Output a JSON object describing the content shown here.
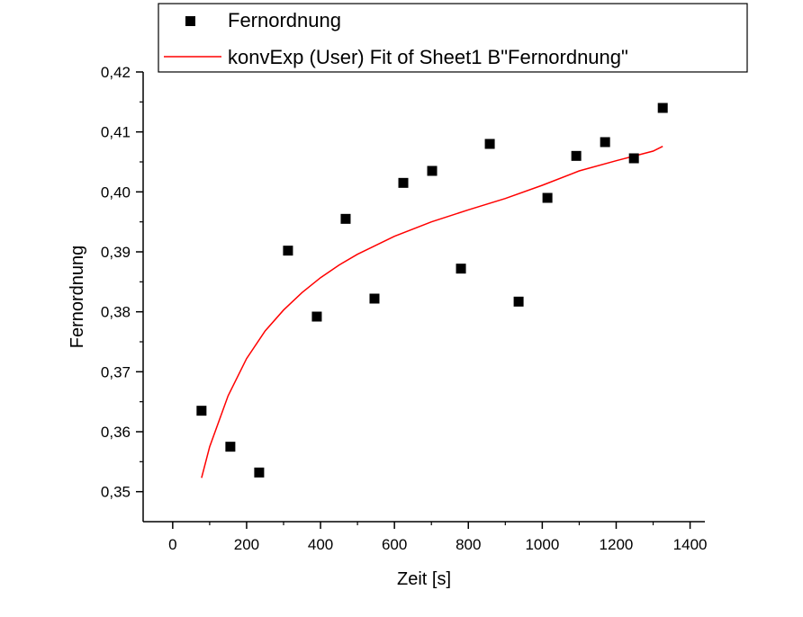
{
  "chart_data": {
    "type": "scatter",
    "xlabel": "Zeit [s]",
    "ylabel": "Fernordnung",
    "xlim": [
      -80,
      1440
    ],
    "ylim": [
      0.345,
      0.42
    ],
    "x_ticks": [
      0,
      200,
      400,
      600,
      800,
      1000,
      1200,
      1400
    ],
    "x_tick_labels": [
      "0",
      "200",
      "400",
      "600",
      "800",
      "1000",
      "1200",
      "1400"
    ],
    "y_ticks": [
      0.35,
      0.36,
      0.37,
      0.38,
      0.39,
      0.4,
      0.41,
      0.42
    ],
    "y_tick_labels": [
      "0,35",
      "0,36",
      "0,37",
      "0,38",
      "0,39",
      "0,40",
      "0,41",
      "0,42"
    ],
    "legend_position": "top",
    "series": [
      {
        "name": "Fernordnung",
        "kind": "scatter",
        "marker": "square",
        "color": "#000000",
        "x": [
          78,
          156,
          234,
          312,
          390,
          468,
          546,
          624,
          702,
          780,
          858,
          936,
          1014,
          1092,
          1170,
          1248,
          1326
        ],
        "y": [
          0.3635,
          0.3575,
          0.3532,
          0.3902,
          0.3792,
          0.3955,
          0.3822,
          0.4015,
          0.4035,
          0.3872,
          0.408,
          0.3817,
          0.399,
          0.406,
          0.4083,
          0.4056,
          0.414
        ]
      },
      {
        "name": "konvExp (User) Fit of Sheet1 B\"Fernordnung\"",
        "kind": "line",
        "color": "#ff0000",
        "x": [
          78,
          100,
          150,
          200,
          250,
          300,
          350,
          400,
          450,
          500,
          600,
          700,
          800,
          900,
          1000,
          1100,
          1200,
          1300,
          1326
        ],
        "y": [
          0.3523,
          0.3575,
          0.366,
          0.3722,
          0.3768,
          0.3803,
          0.3832,
          0.3857,
          0.3878,
          0.3896,
          0.3926,
          0.395,
          0.397,
          0.3989,
          0.4011,
          0.4035,
          0.4052,
          0.4068,
          0.4076
        ]
      }
    ]
  }
}
